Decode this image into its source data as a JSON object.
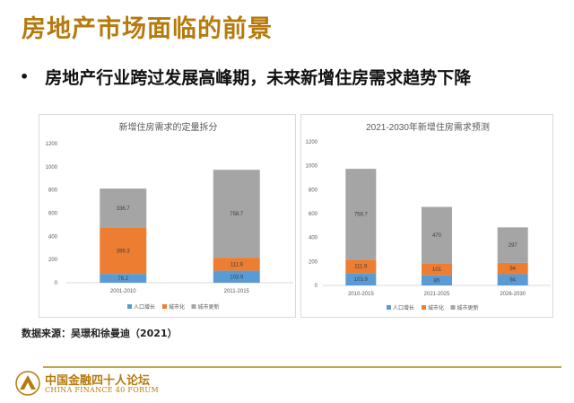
{
  "page": {
    "title": "房地产市场面临的前景",
    "bullet": "房地产行业跨过发展高峰期，未来新增住房需求趋势下降",
    "source": "数据来源：吴璟和徐曼迪（2021）",
    "logo_cn": "中国金融四十人论坛",
    "logo_en": "CHINA FINANCE 40 FORUM",
    "accent_color": "#b67a0c"
  },
  "chart_data": [
    {
      "type": "bar",
      "stacked": true,
      "title": "新增住房需求的定量拆分",
      "categories": [
        "2001-2010",
        "2011-2015"
      ],
      "series": [
        {
          "name": "人口增长",
          "color": "#5b9bd5",
          "values": [
            76.2,
            103.9
          ],
          "labels": [
            "76.2",
            "103.9"
          ]
        },
        {
          "name": "城市化",
          "color": "#ed7d31",
          "values": [
            399.3,
            111.9
          ],
          "labels": [
            "399.3",
            "111.9"
          ]
        },
        {
          "name": "城市更新",
          "color": "#a5a5a5",
          "values": [
            336.7,
            758.7
          ],
          "labels": [
            "336.7",
            "758.7"
          ]
        }
      ],
      "yticks": [
        "0",
        "200",
        "400",
        "600",
        "800",
        "1000",
        "1200"
      ],
      "ylim": [
        0,
        1200
      ],
      "legend": "bottom",
      "grid": false
    },
    {
      "type": "bar",
      "stacked": true,
      "title": "2021-2030年新增住房需求预测",
      "categories": [
        "2010-2015",
        "2021-2025",
        "2026-2030"
      ],
      "series": [
        {
          "name": "人口增长",
          "color": "#5b9bd5",
          "values": [
            103.9,
            85,
            94
          ],
          "labels": [
            "103.9",
            "85",
            "94"
          ]
        },
        {
          "name": "城市化",
          "color": "#ed7d31",
          "values": [
            111.9,
            101,
            94
          ],
          "labels": [
            "111.9",
            "101",
            "94"
          ]
        },
        {
          "name": "城市更新",
          "color": "#a5a5a5",
          "values": [
            758.7,
            470,
            297
          ],
          "labels": [
            "758.7",
            "470",
            "297"
          ]
        }
      ],
      "yticks": [
        "0",
        "200",
        "400",
        "600",
        "800",
        "1000",
        "1200"
      ],
      "ylim": [
        0,
        1200
      ],
      "legend": "bottom",
      "grid": false
    }
  ]
}
